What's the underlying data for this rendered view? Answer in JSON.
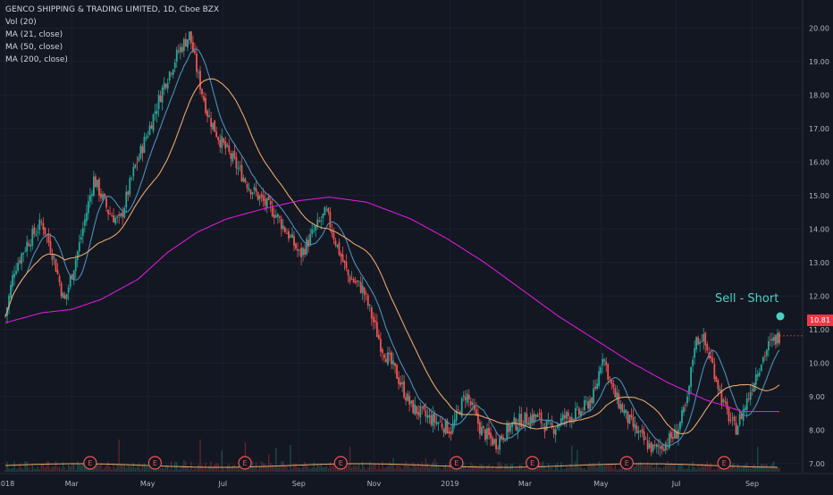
{
  "legend": {
    "title": "GENCO SHIPPING & TRADING LIMITED, 1D, Cboe BZX",
    "vol": "Vol (20)",
    "ma21": "MA (21, close)",
    "ma50": "MA (50, close)",
    "ma200": "MA (200, close)"
  },
  "annotation": "Sell - Short",
  "last_price": "10.81",
  "colors": {
    "background": "#131722",
    "up": "#26a69a",
    "down": "#ef5350",
    "ma21": "#4a90b8",
    "ma50": "#e8a66a",
    "ma200": "#d81bd8",
    "annotation": "#4dd0c4",
    "price_tag": "#f23645",
    "earnings": "#ef5350"
  },
  "chart_data": {
    "type": "candlestick",
    "title": "GENCO SHIPPING & TRADING LIMITED, 1D, Cboe BZX",
    "ylim": [
      6.7,
      20.3
    ],
    "y_ticks": [
      "20.00",
      "19.00",
      "18.00",
      "17.00",
      "16.00",
      "15.00",
      "14.00",
      "13.00",
      "12.00",
      "11.00",
      "10.00",
      "9.00",
      "8.00",
      "7.00"
    ],
    "x_ticks": [
      {
        "label": "2018",
        "t": 0.0
      },
      {
        "label": "Mar",
        "t": 0.09
      },
      {
        "label": "May",
        "t": 0.193
      },
      {
        "label": "Jul",
        "t": 0.295
      },
      {
        "label": "Sep",
        "t": 0.398
      },
      {
        "label": "Nov",
        "t": 0.5
      },
      {
        "label": "2019",
        "t": 0.603
      },
      {
        "label": "Mar",
        "t": 0.705
      },
      {
        "label": "May",
        "t": 0.808
      },
      {
        "label": "Jul",
        "t": 0.91
      },
      {
        "label": "Sep",
        "t": 1.013
      }
    ],
    "price_keyframes": [
      [
        0.0,
        11.4
      ],
      [
        0.012,
        12.8
      ],
      [
        0.03,
        13.6
      ],
      [
        0.05,
        14.2
      ],
      [
        0.065,
        13.2
      ],
      [
        0.08,
        11.8
      ],
      [
        0.1,
        13.5
      ],
      [
        0.12,
        15.5
      ],
      [
        0.14,
        14.5
      ],
      [
        0.155,
        14.2
      ],
      [
        0.175,
        15.8
      ],
      [
        0.195,
        17.0
      ],
      [
        0.215,
        18.3
      ],
      [
        0.235,
        19.3
      ],
      [
        0.25,
        19.8
      ],
      [
        0.262,
        18.5
      ],
      [
        0.275,
        17.4
      ],
      [
        0.29,
        16.7
      ],
      [
        0.31,
        16.0
      ],
      [
        0.33,
        15.3
      ],
      [
        0.35,
        14.8
      ],
      [
        0.365,
        14.5
      ],
      [
        0.385,
        13.8
      ],
      [
        0.4,
        13.2
      ],
      [
        0.418,
        13.9
      ],
      [
        0.435,
        14.5
      ],
      [
        0.45,
        13.5
      ],
      [
        0.465,
        12.6
      ],
      [
        0.485,
        12.2
      ],
      [
        0.51,
        10.5
      ],
      [
        0.53,
        9.7
      ],
      [
        0.55,
        8.7
      ],
      [
        0.57,
        8.4
      ],
      [
        0.59,
        8.2
      ],
      [
        0.605,
        8.0
      ],
      [
        0.625,
        9.1
      ],
      [
        0.645,
        8.0
      ],
      [
        0.665,
        7.6
      ],
      [
        0.685,
        8.1
      ],
      [
        0.7,
        8.3
      ],
      [
        0.72,
        8.4
      ],
      [
        0.74,
        8.0
      ],
      [
        0.76,
        8.4
      ],
      [
        0.78,
        8.5
      ],
      [
        0.8,
        9.1
      ],
      [
        0.81,
        10.3
      ],
      [
        0.825,
        9.1
      ],
      [
        0.845,
        8.3
      ],
      [
        0.865,
        7.7
      ],
      [
        0.88,
        7.4
      ],
      [
        0.895,
        7.6
      ],
      [
        0.91,
        7.9
      ],
      [
        0.925,
        8.8
      ],
      [
        0.935,
        10.6
      ],
      [
        0.945,
        10.8
      ],
      [
        0.96,
        9.9
      ],
      [
        0.975,
        8.7
      ],
      [
        0.99,
        8.0
      ],
      [
        1.005,
        8.8
      ],
      [
        1.02,
        9.8
      ],
      [
        1.035,
        10.5
      ],
      [
        1.05,
        10.81
      ]
    ],
    "ma200_keyframes": [
      [
        0.0,
        11.2
      ],
      [
        0.05,
        11.5
      ],
      [
        0.09,
        11.6
      ],
      [
        0.13,
        11.9
      ],
      [
        0.18,
        12.5
      ],
      [
        0.22,
        13.3
      ],
      [
        0.26,
        13.9
      ],
      [
        0.3,
        14.3
      ],
      [
        0.35,
        14.6
      ],
      [
        0.4,
        14.85
      ],
      [
        0.44,
        14.95
      ],
      [
        0.49,
        14.8
      ],
      [
        0.55,
        14.3
      ],
      [
        0.6,
        13.7
      ],
      [
        0.65,
        13.0
      ],
      [
        0.7,
        12.2
      ],
      [
        0.75,
        11.4
      ],
      [
        0.8,
        10.7
      ],
      [
        0.85,
        10.0
      ],
      [
        0.9,
        9.4
      ],
      [
        0.95,
        8.9
      ],
      [
        1.0,
        8.55
      ],
      [
        1.05,
        8.55
      ]
    ],
    "earnings_markers_t": [
      0.115,
      0.203,
      0.325,
      0.455,
      0.612,
      0.715,
      0.843,
      0.975
    ]
  }
}
